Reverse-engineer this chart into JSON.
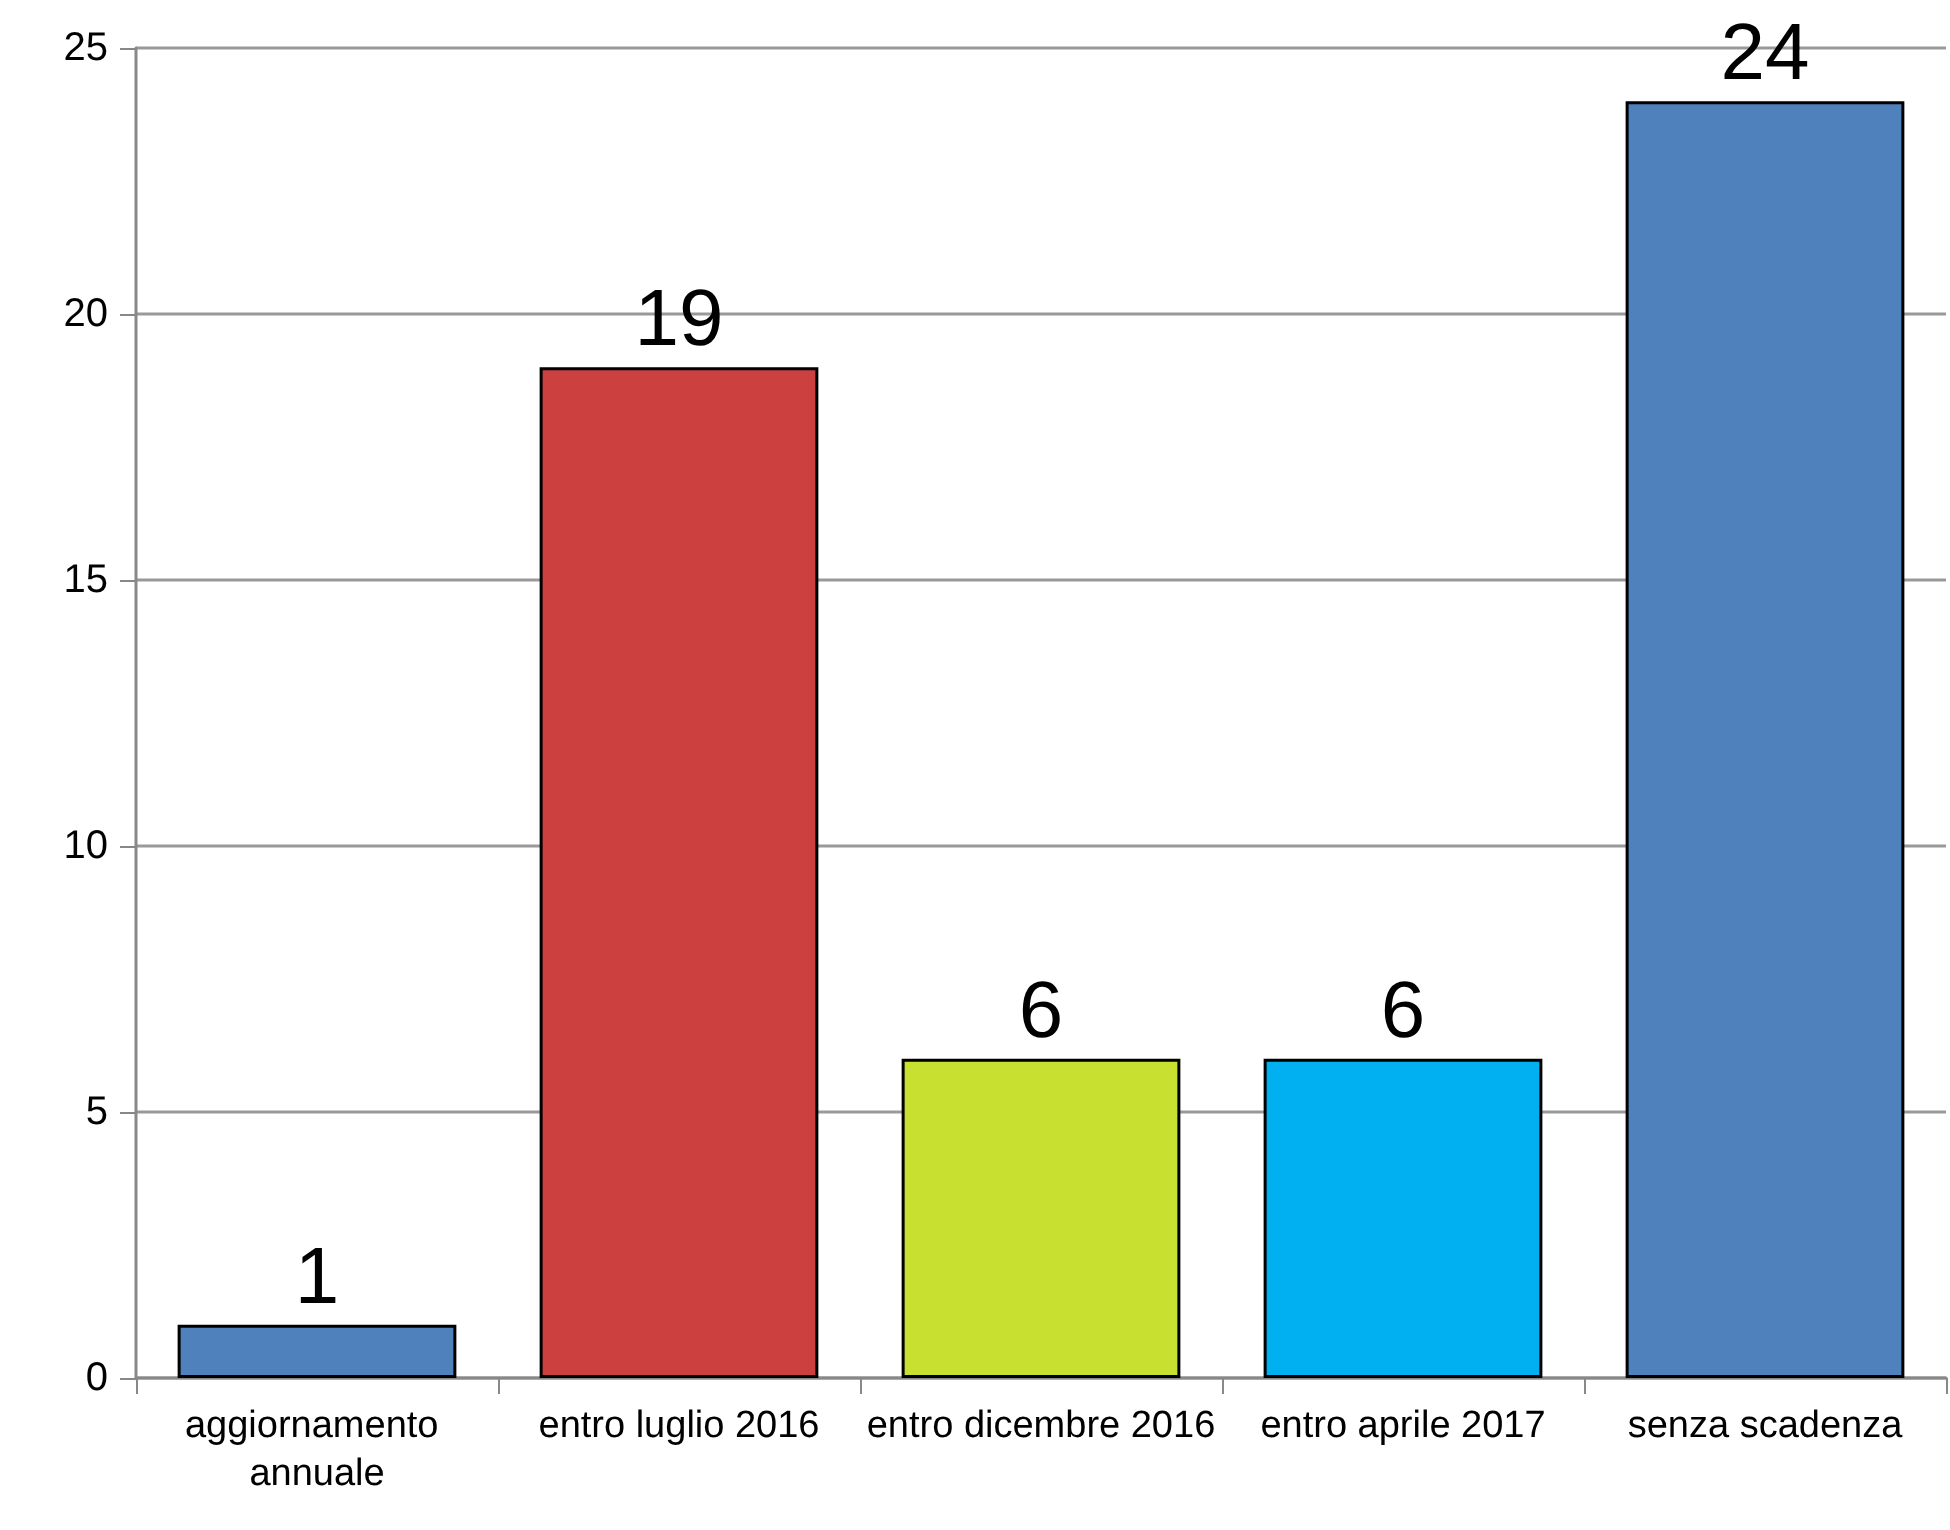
{
  "chart_data": {
    "type": "bar",
    "categories": [
      "aggiornamento annuale",
      "entro luglio 2016",
      "entro dicembre 2016",
      "entro aprile 2017",
      "senza scadenza"
    ],
    "values": [
      1,
      19,
      6,
      6,
      24
    ],
    "colors": [
      "#4f81bd",
      "#cd4040",
      "#c8e030",
      "#00b0f0",
      "#4f81bd"
    ],
    "ylim": [
      0,
      25
    ],
    "yticks": [
      0,
      5,
      10,
      15,
      20,
      25
    ],
    "grid": "y",
    "data_labels": true
  }
}
